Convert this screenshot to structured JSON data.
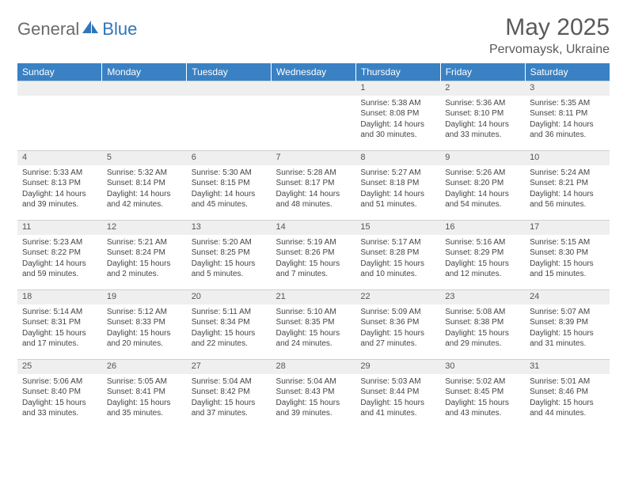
{
  "logo": {
    "part1": "General",
    "part2": "Blue"
  },
  "title": {
    "month": "May 2025",
    "location": "Pervomaysk, Ukraine"
  },
  "weekdays": [
    "Sunday",
    "Monday",
    "Tuesday",
    "Wednesday",
    "Thursday",
    "Friday",
    "Saturday"
  ],
  "colors": {
    "header_bg": "#3a81c4",
    "header_text": "#ffffff",
    "daynum_bg": "#efefef",
    "text": "#444444",
    "logo_gray": "#6b6b6b",
    "logo_blue": "#2f76b8"
  },
  "weeks": [
    [
      null,
      null,
      null,
      null,
      {
        "n": "1",
        "sr": "Sunrise: 5:38 AM",
        "ss": "Sunset: 8:08 PM",
        "d1": "Daylight: 14 hours",
        "d2": "and 30 minutes."
      },
      {
        "n": "2",
        "sr": "Sunrise: 5:36 AM",
        "ss": "Sunset: 8:10 PM",
        "d1": "Daylight: 14 hours",
        "d2": "and 33 minutes."
      },
      {
        "n": "3",
        "sr": "Sunrise: 5:35 AM",
        "ss": "Sunset: 8:11 PM",
        "d1": "Daylight: 14 hours",
        "d2": "and 36 minutes."
      }
    ],
    [
      {
        "n": "4",
        "sr": "Sunrise: 5:33 AM",
        "ss": "Sunset: 8:13 PM",
        "d1": "Daylight: 14 hours",
        "d2": "and 39 minutes."
      },
      {
        "n": "5",
        "sr": "Sunrise: 5:32 AM",
        "ss": "Sunset: 8:14 PM",
        "d1": "Daylight: 14 hours",
        "d2": "and 42 minutes."
      },
      {
        "n": "6",
        "sr": "Sunrise: 5:30 AM",
        "ss": "Sunset: 8:15 PM",
        "d1": "Daylight: 14 hours",
        "d2": "and 45 minutes."
      },
      {
        "n": "7",
        "sr": "Sunrise: 5:28 AM",
        "ss": "Sunset: 8:17 PM",
        "d1": "Daylight: 14 hours",
        "d2": "and 48 minutes."
      },
      {
        "n": "8",
        "sr": "Sunrise: 5:27 AM",
        "ss": "Sunset: 8:18 PM",
        "d1": "Daylight: 14 hours",
        "d2": "and 51 minutes."
      },
      {
        "n": "9",
        "sr": "Sunrise: 5:26 AM",
        "ss": "Sunset: 8:20 PM",
        "d1": "Daylight: 14 hours",
        "d2": "and 54 minutes."
      },
      {
        "n": "10",
        "sr": "Sunrise: 5:24 AM",
        "ss": "Sunset: 8:21 PM",
        "d1": "Daylight: 14 hours",
        "d2": "and 56 minutes."
      }
    ],
    [
      {
        "n": "11",
        "sr": "Sunrise: 5:23 AM",
        "ss": "Sunset: 8:22 PM",
        "d1": "Daylight: 14 hours",
        "d2": "and 59 minutes."
      },
      {
        "n": "12",
        "sr": "Sunrise: 5:21 AM",
        "ss": "Sunset: 8:24 PM",
        "d1": "Daylight: 15 hours",
        "d2": "and 2 minutes."
      },
      {
        "n": "13",
        "sr": "Sunrise: 5:20 AM",
        "ss": "Sunset: 8:25 PM",
        "d1": "Daylight: 15 hours",
        "d2": "and 5 minutes."
      },
      {
        "n": "14",
        "sr": "Sunrise: 5:19 AM",
        "ss": "Sunset: 8:26 PM",
        "d1": "Daylight: 15 hours",
        "d2": "and 7 minutes."
      },
      {
        "n": "15",
        "sr": "Sunrise: 5:17 AM",
        "ss": "Sunset: 8:28 PM",
        "d1": "Daylight: 15 hours",
        "d2": "and 10 minutes."
      },
      {
        "n": "16",
        "sr": "Sunrise: 5:16 AM",
        "ss": "Sunset: 8:29 PM",
        "d1": "Daylight: 15 hours",
        "d2": "and 12 minutes."
      },
      {
        "n": "17",
        "sr": "Sunrise: 5:15 AM",
        "ss": "Sunset: 8:30 PM",
        "d1": "Daylight: 15 hours",
        "d2": "and 15 minutes."
      }
    ],
    [
      {
        "n": "18",
        "sr": "Sunrise: 5:14 AM",
        "ss": "Sunset: 8:31 PM",
        "d1": "Daylight: 15 hours",
        "d2": "and 17 minutes."
      },
      {
        "n": "19",
        "sr": "Sunrise: 5:12 AM",
        "ss": "Sunset: 8:33 PM",
        "d1": "Daylight: 15 hours",
        "d2": "and 20 minutes."
      },
      {
        "n": "20",
        "sr": "Sunrise: 5:11 AM",
        "ss": "Sunset: 8:34 PM",
        "d1": "Daylight: 15 hours",
        "d2": "and 22 minutes."
      },
      {
        "n": "21",
        "sr": "Sunrise: 5:10 AM",
        "ss": "Sunset: 8:35 PM",
        "d1": "Daylight: 15 hours",
        "d2": "and 24 minutes."
      },
      {
        "n": "22",
        "sr": "Sunrise: 5:09 AM",
        "ss": "Sunset: 8:36 PM",
        "d1": "Daylight: 15 hours",
        "d2": "and 27 minutes."
      },
      {
        "n": "23",
        "sr": "Sunrise: 5:08 AM",
        "ss": "Sunset: 8:38 PM",
        "d1": "Daylight: 15 hours",
        "d2": "and 29 minutes."
      },
      {
        "n": "24",
        "sr": "Sunrise: 5:07 AM",
        "ss": "Sunset: 8:39 PM",
        "d1": "Daylight: 15 hours",
        "d2": "and 31 minutes."
      }
    ],
    [
      {
        "n": "25",
        "sr": "Sunrise: 5:06 AM",
        "ss": "Sunset: 8:40 PM",
        "d1": "Daylight: 15 hours",
        "d2": "and 33 minutes."
      },
      {
        "n": "26",
        "sr": "Sunrise: 5:05 AM",
        "ss": "Sunset: 8:41 PM",
        "d1": "Daylight: 15 hours",
        "d2": "and 35 minutes."
      },
      {
        "n": "27",
        "sr": "Sunrise: 5:04 AM",
        "ss": "Sunset: 8:42 PM",
        "d1": "Daylight: 15 hours",
        "d2": "and 37 minutes."
      },
      {
        "n": "28",
        "sr": "Sunrise: 5:04 AM",
        "ss": "Sunset: 8:43 PM",
        "d1": "Daylight: 15 hours",
        "d2": "and 39 minutes."
      },
      {
        "n": "29",
        "sr": "Sunrise: 5:03 AM",
        "ss": "Sunset: 8:44 PM",
        "d1": "Daylight: 15 hours",
        "d2": "and 41 minutes."
      },
      {
        "n": "30",
        "sr": "Sunrise: 5:02 AM",
        "ss": "Sunset: 8:45 PM",
        "d1": "Daylight: 15 hours",
        "d2": "and 43 minutes."
      },
      {
        "n": "31",
        "sr": "Sunrise: 5:01 AM",
        "ss": "Sunset: 8:46 PM",
        "d1": "Daylight: 15 hours",
        "d2": "and 44 minutes."
      }
    ]
  ]
}
